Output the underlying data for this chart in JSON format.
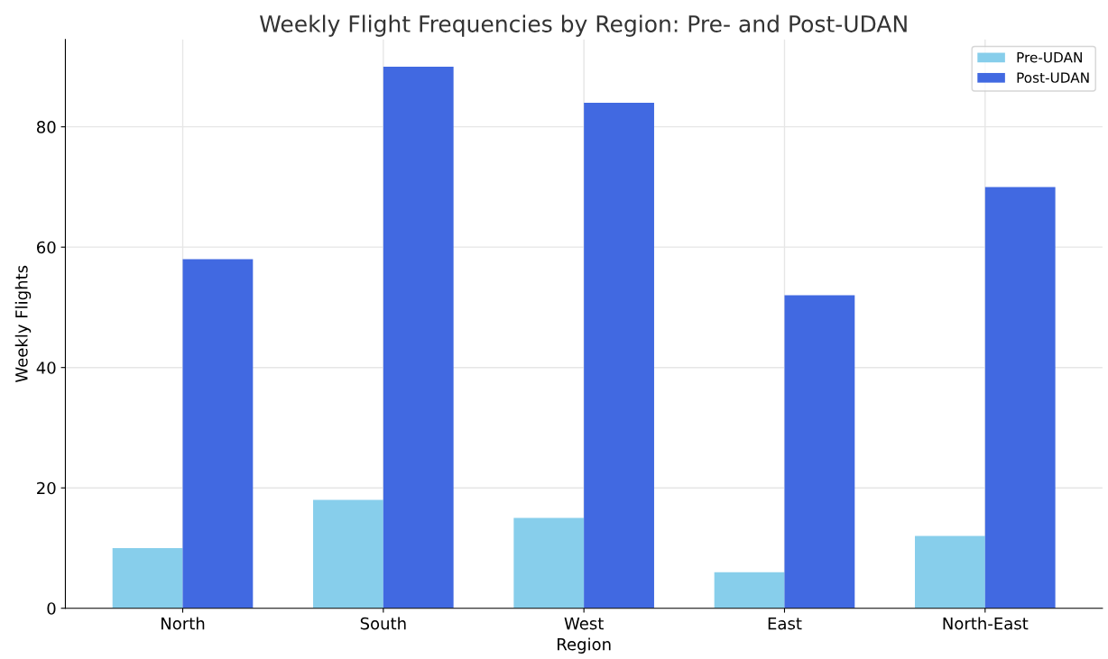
{
  "chart_data": {
    "type": "bar",
    "title": "Weekly Flight Frequencies by Region: Pre- and Post-UDAN",
    "xlabel": "Region",
    "ylabel": "Weekly Flights",
    "categories": [
      "North",
      "South",
      "West",
      "East",
      "North-East"
    ],
    "series": [
      {
        "name": "Pre-UDAN",
        "color": "#87ceeb",
        "values": [
          10,
          18,
          15,
          6,
          12
        ]
      },
      {
        "name": "Post-UDAN",
        "color": "#4169e1",
        "values": [
          58,
          90,
          84,
          52,
          70
        ]
      }
    ],
    "ylim": [
      0,
      94.5
    ],
    "yticks": [
      0,
      20,
      40,
      60,
      80
    ],
    "grid": true,
    "legend": "top right"
  }
}
